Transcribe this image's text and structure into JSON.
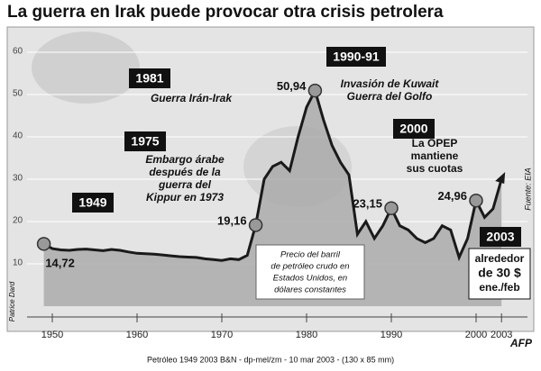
{
  "chart_data": {
    "type": "area",
    "title": "La guerra en Irak puede provocar otra crisis petrolera",
    "x": [
      1949,
      1950,
      1951,
      1952,
      1953,
      1954,
      1955,
      1956,
      1957,
      1958,
      1959,
      1960,
      1961,
      1962,
      1963,
      1964,
      1965,
      1966,
      1967,
      1968,
      1969,
      1970,
      1971,
      1972,
      1973,
      1974,
      1975,
      1976,
      1977,
      1978,
      1979,
      1980,
      1981,
      1982,
      1983,
      1984,
      1985,
      1986,
      1987,
      1988,
      1989,
      1990,
      1991,
      1992,
      1993,
      1994,
      1995,
      1996,
      1997,
      1998,
      1999,
      2000,
      2001,
      2002,
      2003
    ],
    "values": [
      14.72,
      13.6,
      13.3,
      13.2,
      13.4,
      13.5,
      13.3,
      13.1,
      13.4,
      13.2,
      12.8,
      12.5,
      12.4,
      12.3,
      12.1,
      11.9,
      11.7,
      11.6,
      11.5,
      11.2,
      11.0,
      10.8,
      11.2,
      11.0,
      12.0,
      19.16,
      30,
      33,
      34,
      32,
      40,
      47,
      50.94,
      44,
      38,
      34,
      31,
      17,
      20,
      16,
      19,
      23.15,
      19,
      18,
      16,
      15,
      16,
      19,
      18,
      11.5,
      16,
      24.96,
      21,
      23,
      30
    ],
    "value_labels": [
      "14,72",
      null,
      null,
      null,
      null,
      null,
      null,
      null,
      null,
      null,
      null,
      null,
      null,
      null,
      null,
      null,
      null,
      null,
      null,
      null,
      null,
      null,
      null,
      null,
      null,
      "19,16",
      null,
      null,
      null,
      null,
      null,
      null,
      "50,94",
      null,
      null,
      null,
      null,
      null,
      null,
      null,
      null,
      "23,15",
      null,
      null,
      null,
      null,
      null,
      null,
      null,
      null,
      null,
      "24,96",
      null,
      null,
      null
    ],
    "color": "#1a1a1a",
    "xlim": [
      1946,
      2006
    ],
    "xticks": [
      1950,
      1960,
      1970,
      1980,
      1990,
      2000,
      2003
    ],
    "ylim": [
      0,
      65
    ],
    "yticks": [
      10,
      20,
      30,
      40,
      50,
      60
    ],
    "grid": true,
    "note": [
      "Precio del barril",
      "de petróleo crudo en",
      "Estados Unidos, en",
      "dólares constantes"
    ],
    "annotations": [
      {
        "year": "1949",
        "text": []
      },
      {
        "year": "1975",
        "text": [
          "Embargo árabe",
          "después de la",
          "guerra del",
          "Kippur en 1973"
        ]
      },
      {
        "year": "1981",
        "text": [
          "Guerra Irán-Irak"
        ]
      },
      {
        "year": "1990-91",
        "text": [
          "Invasión de Kuwait",
          "Guerra del Golfo"
        ]
      },
      {
        "year": "2000",
        "text": [
          "La OPEP",
          "mantiene",
          "sus cuotas"
        ]
      },
      {
        "year": "2003",
        "text": [
          "alrededor",
          "de 30 $",
          "ene./feb"
        ]
      }
    ],
    "source": "Fuente: EIA",
    "credit": "Patrice Dard",
    "agency": "AFP",
    "footer": "Petróleo 1949 2003 B&N - dp-mel/zm - 10 mar 2003 - (130 x 85 mm)"
  }
}
